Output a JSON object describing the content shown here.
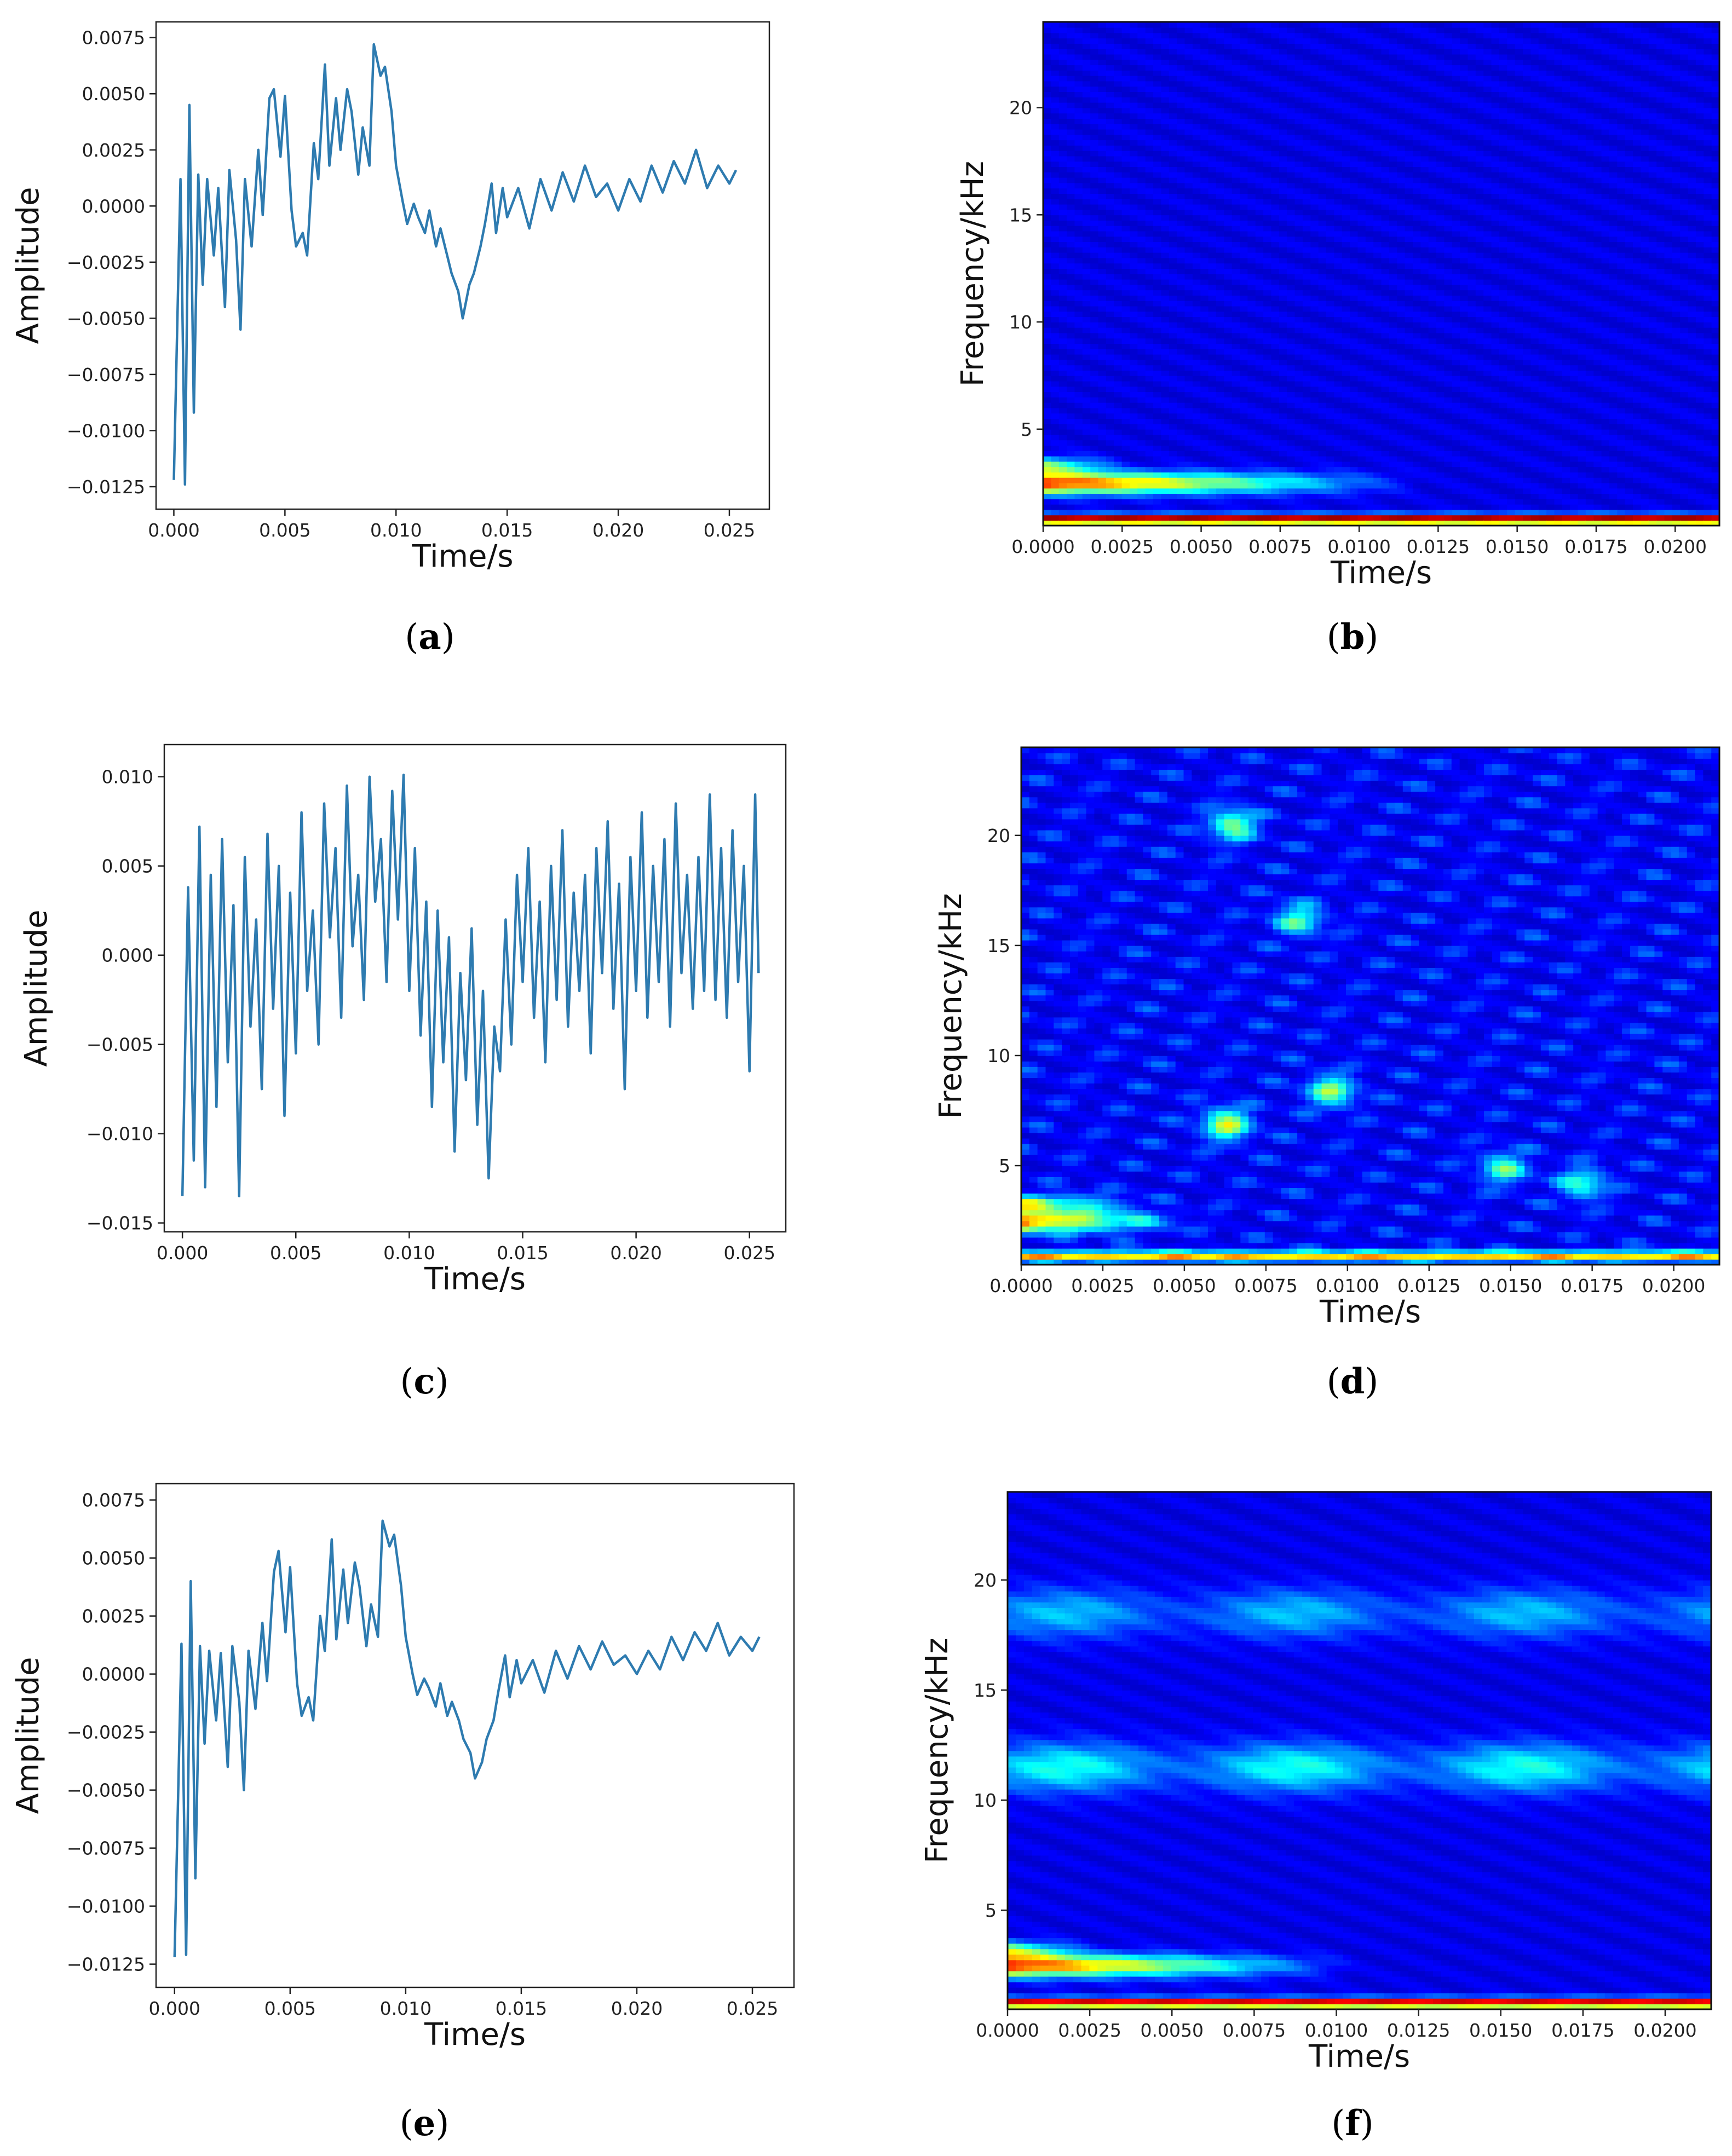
{
  "figure": {
    "panels": [
      {
        "id": "a",
        "label_open": "(",
        "label_letter": "a",
        "label_close": ")"
      },
      {
        "id": "b",
        "label_open": "(",
        "label_letter": "b",
        "label_close": ")"
      },
      {
        "id": "c",
        "label_open": "(",
        "label_letter": "c",
        "label_close": ")"
      },
      {
        "id": "d",
        "label_open": "(",
        "label_letter": "d",
        "label_close": ")"
      },
      {
        "id": "e",
        "label_open": "(",
        "label_letter": "e",
        "label_close": ")"
      },
      {
        "id": "f",
        "label_open": "(",
        "label_letter": "f",
        "label_close": ")"
      }
    ]
  },
  "chart_data": [
    {
      "id": "a",
      "type": "line",
      "xlabel": "Time/s",
      "ylabel": "Amplitude",
      "xlim": [
        -0.0008,
        0.0268
      ],
      "ylim": [
        -0.0135,
        0.0082
      ],
      "xticks": [
        0.0,
        0.005,
        0.01,
        0.015,
        0.02,
        0.025
      ],
      "xtick_labels": [
        "0.000",
        "0.005",
        "0.010",
        "0.015",
        "0.020",
        "0.025"
      ],
      "yticks": [
        -0.0125,
        -0.01,
        -0.0075,
        -0.005,
        -0.0025,
        0.0,
        0.0025,
        0.005,
        0.0075
      ],
      "ytick_labels": [
        "−0.0125",
        "−0.0100",
        "−0.0075",
        "−0.0050",
        "−0.0025",
        "0.0000",
        "0.0025",
        "0.0050",
        "0.0075"
      ],
      "color": "#2e7bb0",
      "series": [
        {
          "name": "signal",
          "x": [
            0,
            0.0003,
            0.0005,
            0.0007,
            0.0009,
            0.0011,
            0.0013,
            0.0015,
            0.0018,
            0.002,
            0.0023,
            0.0025,
            0.0028,
            0.003,
            0.0032,
            0.0035,
            0.0038,
            0.004,
            0.0043,
            0.0045,
            0.0048,
            0.005,
            0.0053,
            0.0055,
            0.0058,
            0.006,
            0.0063,
            0.0065,
            0.0068,
            0.007,
            0.0073,
            0.0075,
            0.0078,
            0.008,
            0.0083,
            0.0085,
            0.0088,
            0.009,
            0.0093,
            0.0095,
            0.0098,
            0.01,
            0.0103,
            0.0105,
            0.0108,
            0.011,
            0.0113,
            0.0115,
            0.0118,
            0.012,
            0.0123,
            0.0125,
            0.0128,
            0.013,
            0.0133,
            0.0135,
            0.0138,
            0.014,
            0.0143,
            0.0145,
            0.0148,
            0.015,
            0.0155,
            0.016,
            0.0165,
            0.017,
            0.0175,
            0.018,
            0.0185,
            0.019,
            0.0195,
            0.02,
            0.0205,
            0.021,
            0.0215,
            0.022,
            0.0225,
            0.023,
            0.0235,
            0.024,
            0.0245,
            0.025,
            0.0253
          ],
          "y": [
            -0.0122,
            0.0012,
            -0.0124,
            0.0045,
            -0.0092,
            0.0014,
            -0.0035,
            0.0012,
            -0.0022,
            0.0008,
            -0.0045,
            0.0016,
            -0.0015,
            -0.0055,
            0.0012,
            -0.0018,
            0.0025,
            -0.0004,
            0.0048,
            0.0052,
            0.0022,
            0.0049,
            -0.0002,
            -0.0018,
            -0.0012,
            -0.0022,
            0.0028,
            0.0012,
            0.0063,
            0.0018,
            0.0048,
            0.0025,
            0.0052,
            0.0042,
            0.0014,
            0.0035,
            0.0018,
            0.0072,
            0.0058,
            0.0062,
            0.0042,
            0.0018,
            0.0002,
            -0.0008,
            0.0001,
            -0.0005,
            -0.0012,
            -0.0002,
            -0.0018,
            -0.001,
            -0.0022,
            -0.003,
            -0.0038,
            -0.005,
            -0.0035,
            -0.003,
            -0.0018,
            -0.0008,
            0.001,
            -0.0012,
            0.0008,
            -0.0005,
            0.0008,
            -0.001,
            0.0012,
            -0.0002,
            0.0015,
            0.0002,
            0.0018,
            0.0004,
            0.001,
            -0.0002,
            0.0012,
            0.0002,
            0.0018,
            0.0006,
            0.002,
            0.001,
            0.0025,
            0.0008,
            0.0018,
            0.001,
            0.0016
          ]
        }
      ]
    },
    {
      "id": "b",
      "type": "heatmap",
      "xlabel": "Time/s",
      "ylabel": "Frequency/kHz",
      "xlim": [
        0,
        0.0214
      ],
      "ylim": [
        0.5,
        24
      ],
      "xticks": [
        0,
        0.0025,
        0.005,
        0.0075,
        0.01,
        0.0125,
        0.015,
        0.0175,
        0.02
      ],
      "xtick_labels": [
        "0.0000",
        "0.0025",
        "0.0050",
        "0.0075",
        "0.0100",
        "0.0125",
        "0.0150",
        "0.0175",
        "0.0200"
      ],
      "yticks": [
        5,
        10,
        15,
        20
      ],
      "ytick_labels": [
        "5",
        "10",
        "15",
        "20"
      ],
      "colormap": "jet",
      "features": [
        {
          "kind": "band",
          "f": 2.5,
          "t_end": 0.009,
          "intensity": 0.75,
          "width": 0.5
        },
        {
          "kind": "band",
          "f": 3.3,
          "t_end": 0.002,
          "intensity": 0.4,
          "width": 0.4
        },
        {
          "kind": "line",
          "f": 0.8,
          "intensity": 0.95
        }
      ]
    },
    {
      "id": "c",
      "type": "line",
      "xlabel": "Time/s",
      "ylabel": "Amplitude",
      "xlim": [
        -0.0008,
        0.0266
      ],
      "ylim": [
        -0.0155,
        0.0118
      ],
      "xticks": [
        0.0,
        0.005,
        0.01,
        0.015,
        0.02,
        0.025
      ],
      "xtick_labels": [
        "0.000",
        "0.005",
        "0.010",
        "0.015",
        "0.020",
        "0.025"
      ],
      "yticks": [
        -0.015,
        -0.01,
        -0.005,
        0.0,
        0.005,
        0.01
      ],
      "ytick_labels": [
        "−0.015",
        "−0.010",
        "−0.005",
        "0.000",
        "0.005",
        "0.010"
      ],
      "color": "#2e7bb0",
      "series": [
        {
          "name": "signal",
          "x": [
            0,
            0.00025,
            0.0005,
            0.00075,
            0.001,
            0.00125,
            0.0015,
            0.00175,
            0.002,
            0.00225,
            0.0025,
            0.00275,
            0.003,
            0.00325,
            0.0035,
            0.00375,
            0.004,
            0.00425,
            0.0045,
            0.00475,
            0.005,
            0.00525,
            0.0055,
            0.00575,
            0.006,
            0.00625,
            0.0065,
            0.00675,
            0.007,
            0.00725,
            0.0075,
            0.00775,
            0.008,
            0.00825,
            0.0085,
            0.00875,
            0.009,
            0.00925,
            0.0095,
            0.00975,
            0.01,
            0.01025,
            0.0105,
            0.01075,
            0.011,
            0.01125,
            0.0115,
            0.01175,
            0.012,
            0.01225,
            0.0125,
            0.01275,
            0.013,
            0.01325,
            0.0135,
            0.01375,
            0.014,
            0.01425,
            0.0145,
            0.01475,
            0.015,
            0.01525,
            0.0155,
            0.01575,
            0.016,
            0.01625,
            0.0165,
            0.01675,
            0.017,
            0.01725,
            0.0175,
            0.01775,
            0.018,
            0.01825,
            0.0185,
            0.01875,
            0.019,
            0.01925,
            0.0195,
            0.01975,
            0.02,
            0.02025,
            0.0205,
            0.02075,
            0.021,
            0.02125,
            0.0215,
            0.02175,
            0.022,
            0.02225,
            0.0225,
            0.02275,
            0.023,
            0.02325,
            0.0235,
            0.02375,
            0.024,
            0.02425,
            0.0245,
            0.02475,
            0.025,
            0.02525,
            0.0254
          ],
          "y": [
            -0.0135,
            0.0038,
            -0.0115,
            0.0072,
            -0.013,
            0.0045,
            -0.0085,
            0.0065,
            -0.006,
            0.0028,
            -0.0135,
            0.0055,
            -0.004,
            0.002,
            -0.0075,
            0.0068,
            -0.003,
            0.005,
            -0.009,
            0.0035,
            -0.0055,
            0.008,
            -0.002,
            0.0025,
            -0.005,
            0.0085,
            0.001,
            0.006,
            -0.0035,
            0.0095,
            0.0005,
            0.0045,
            -0.0025,
            0.01,
            0.003,
            0.0065,
            -0.0015,
            0.0092,
            0.002,
            0.0101,
            -0.002,
            0.006,
            -0.0045,
            0.003,
            -0.0085,
            0.0025,
            -0.006,
            0.001,
            -0.011,
            -0.001,
            -0.007,
            0.0015,
            -0.0095,
            -0.002,
            -0.0125,
            -0.004,
            -0.0065,
            0.002,
            -0.005,
            0.0045,
            -0.0015,
            0.006,
            -0.0035,
            0.003,
            -0.006,
            0.005,
            -0.0025,
            0.007,
            -0.004,
            0.0035,
            -0.002,
            0.0045,
            -0.0055,
            0.006,
            -0.001,
            0.0075,
            -0.003,
            0.004,
            -0.0075,
            0.0055,
            -0.002,
            0.008,
            -0.0035,
            0.005,
            -0.0015,
            0.0065,
            -0.004,
            0.0085,
            -0.001,
            0.0045,
            -0.003,
            0.0055,
            -0.002,
            0.009,
            -0.0025,
            0.006,
            -0.0035,
            0.007,
            -0.0015,
            0.005,
            -0.0065,
            0.009,
            -0.001
          ]
        }
      ]
    },
    {
      "id": "d",
      "type": "heatmap",
      "xlabel": "Time/s",
      "ylabel": "Frequency/kHz",
      "xlim": [
        0,
        0.0214
      ],
      "ylim": [
        0.5,
        24
      ],
      "xticks": [
        0,
        0.0025,
        0.005,
        0.0075,
        0.01,
        0.0125,
        0.015,
        0.0175,
        0.02
      ],
      "xtick_labels": [
        "0.0000",
        "0.0025",
        "0.0050",
        "0.0075",
        "0.0100",
        "0.0125",
        "0.0150",
        "0.0175",
        "0.0200"
      ],
      "yticks": [
        5,
        10,
        15,
        20
      ],
      "ytick_labels": [
        "5",
        "10",
        "15",
        "20"
      ],
      "colormap": "jet",
      "features": [
        {
          "kind": "band",
          "f": 2.5,
          "t_end": 0.004,
          "intensity": 0.65,
          "width": 0.5
        },
        {
          "kind": "band",
          "f": 3.3,
          "t_end": 0.003,
          "intensity": 0.4,
          "width": 0.4
        },
        {
          "kind": "line",
          "f": 0.9,
          "intensity": 0.55
        },
        {
          "kind": "blob",
          "t": 0.0063,
          "f": 6.9,
          "intensity": 0.45
        },
        {
          "kind": "blob",
          "t": 0.0095,
          "f": 8.4,
          "intensity": 0.38
        },
        {
          "kind": "blob",
          "t": 0.0065,
          "f": 20.5,
          "intensity": 0.38
        },
        {
          "kind": "blob",
          "t": 0.0085,
          "f": 16.2,
          "intensity": 0.32
        },
        {
          "kind": "blob",
          "t": 0.0148,
          "f": 4.9,
          "intensity": 0.32
        },
        {
          "kind": "blob",
          "t": 0.0172,
          "f": 4.2,
          "intensity": 0.3
        }
      ]
    },
    {
      "id": "e",
      "type": "line",
      "xlabel": "Time/s",
      "ylabel": "Amplitude",
      "xlim": [
        -0.0008,
        0.0268
      ],
      "ylim": [
        -0.0135,
        0.0082
      ],
      "xticks": [
        0.0,
        0.005,
        0.01,
        0.015,
        0.02,
        0.025
      ],
      "xtick_labels": [
        "0.000",
        "0.005",
        "0.010",
        "0.015",
        "0.020",
        "0.025"
      ],
      "yticks": [
        -0.0125,
        -0.01,
        -0.0075,
        -0.005,
        -0.0025,
        0.0,
        0.0025,
        0.005,
        0.0075
      ],
      "ytick_labels": [
        "−0.0125",
        "−0.0100",
        "−0.0075",
        "−0.0050",
        "−0.0025",
        "0.0000",
        "0.0025",
        "0.0050",
        "0.0075"
      ],
      "color": "#2e7bb0",
      "series": [
        {
          "name": "signal",
          "x": [
            0,
            0.0003,
            0.0005,
            0.0007,
            0.0009,
            0.0011,
            0.0013,
            0.0015,
            0.0018,
            0.002,
            0.0023,
            0.0025,
            0.0028,
            0.003,
            0.0032,
            0.0035,
            0.0038,
            0.004,
            0.0043,
            0.0045,
            0.0048,
            0.005,
            0.0053,
            0.0055,
            0.0058,
            0.006,
            0.0063,
            0.0065,
            0.0068,
            0.007,
            0.0073,
            0.0075,
            0.0078,
            0.008,
            0.0083,
            0.0085,
            0.0088,
            0.009,
            0.0093,
            0.0095,
            0.0098,
            0.01,
            0.0103,
            0.0105,
            0.0108,
            0.011,
            0.0113,
            0.0115,
            0.0118,
            0.012,
            0.0123,
            0.0125,
            0.0128,
            0.013,
            0.0133,
            0.0135,
            0.0138,
            0.014,
            0.0143,
            0.0145,
            0.0148,
            0.015,
            0.0155,
            0.016,
            0.0165,
            0.017,
            0.0175,
            0.018,
            0.0185,
            0.019,
            0.0195,
            0.02,
            0.0205,
            0.021,
            0.0215,
            0.022,
            0.0225,
            0.023,
            0.0235,
            0.024,
            0.0245,
            0.025,
            0.0253
          ],
          "y": [
            -0.0122,
            0.0013,
            -0.0121,
            0.004,
            -0.0088,
            0.0012,
            -0.003,
            0.001,
            -0.002,
            0.0009,
            -0.004,
            0.0012,
            -0.0012,
            -0.005,
            0.001,
            -0.0015,
            0.0022,
            -0.0003,
            0.0044,
            0.0053,
            0.0018,
            0.0046,
            -0.0004,
            -0.0018,
            -0.001,
            -0.002,
            0.0025,
            0.001,
            0.0058,
            0.0015,
            0.0045,
            0.0022,
            0.0048,
            0.0038,
            0.0012,
            0.003,
            0.0016,
            0.0066,
            0.0055,
            0.006,
            0.0038,
            0.0016,
            0.0,
            -0.0009,
            -0.0002,
            -0.0006,
            -0.0014,
            -0.0004,
            -0.0018,
            -0.0012,
            -0.002,
            -0.0028,
            -0.0034,
            -0.0045,
            -0.0038,
            -0.0028,
            -0.002,
            -0.0008,
            0.0008,
            -0.001,
            0.0006,
            -0.0004,
            0.0006,
            -0.0008,
            0.001,
            -0.0002,
            0.0012,
            0.0002,
            0.0014,
            0.0004,
            0.0008,
            0.0,
            0.001,
            0.0002,
            0.0016,
            0.0006,
            0.0018,
            0.001,
            0.0022,
            0.0008,
            0.0016,
            0.001,
            0.0016
          ]
        }
      ]
    },
    {
      "id": "f",
      "type": "heatmap",
      "xlabel": "Time/s",
      "ylabel": "Frequency/kHz",
      "xlim": [
        0,
        0.0214
      ],
      "ylim": [
        0.5,
        24
      ],
      "xticks": [
        0,
        0.0025,
        0.005,
        0.0075,
        0.01,
        0.0125,
        0.015,
        0.0175,
        0.02
      ],
      "xtick_labels": [
        "0.0000",
        "0.0025",
        "0.0050",
        "0.0075",
        "0.0100",
        "0.0125",
        "0.0150",
        "0.0175",
        "0.0200"
      ],
      "yticks": [
        5,
        10,
        15,
        20
      ],
      "ytick_labels": [
        "5",
        "10",
        "15",
        "20"
      ],
      "colormap": "jet",
      "features": [
        {
          "kind": "band",
          "f": 2.5,
          "t_end": 0.008,
          "intensity": 0.75,
          "width": 0.5
        },
        {
          "kind": "band",
          "f": 3.2,
          "t_end": 0.002,
          "intensity": 0.4,
          "width": 0.4
        },
        {
          "kind": "line",
          "f": 0.8,
          "intensity": 0.9
        },
        {
          "kind": "ridge",
          "f": 11.5,
          "intensity": 0.3
        },
        {
          "kind": "ridge",
          "f": 18.5,
          "intensity": 0.22
        }
      ]
    }
  ]
}
